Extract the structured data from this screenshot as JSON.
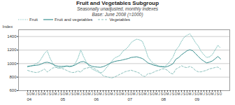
{
  "chart_data": {
    "type": "line",
    "title": "Fruit and Vegetables Subgroup",
    "subtitle": [
      "Seasonally unadjusted, monthly indexes",
      "Base: June 2008 (=1000)"
    ],
    "ylabel": "Index",
    "categories": [
      "S",
      "O",
      "M",
      "J",
      "S",
      "O",
      "M",
      "J",
      "S",
      "O",
      "M",
      "J",
      "S",
      "O",
      "M",
      "J",
      "S",
      "O",
      "M",
      "J",
      "S",
      "O",
      "M",
      "J",
      "S",
      "O",
      "M",
      "J",
      "S",
      "O",
      "M",
      "J",
      "S",
      "O",
      "M",
      "J",
      "S",
      "O",
      "M",
      "J",
      "S",
      "O",
      "M",
      "J",
      "S",
      "O",
      "M",
      "J",
      "S",
      "O",
      "M",
      "J",
      "S",
      "O",
      "M",
      "J",
      "S",
      "O",
      "M",
      "J",
      "S",
      "O",
      "M",
      "J",
      "S",
      "O",
      "M",
      "J",
      "S",
      "O"
    ],
    "series": [
      {
        "name": "Fruit",
        "color": "#7abfbb",
        "line_style": "dotted",
        "values": [
          950,
          960,
          975,
          1000,
          1020,
          1080,
          1150,
          1190,
          1080,
          1000,
          950,
          930,
          940,
          950,
          960,
          950,
          960,
          1000,
          1080,
          1200,
          1100,
          1020,
          960,
          920,
          900,
          880,
          860,
          880,
          930,
          980,
          1030,
          1080,
          1100,
          1120,
          1180,
          1210,
          1250,
          1310,
          1340,
          1360,
          1350,
          1330,
          1230,
          1100,
          1040,
          1000,
          980,
          960,
          960,
          960,
          990,
          1040,
          1100,
          1200,
          1250,
          1330,
          1390,
          1420,
          1440,
          1380,
          1310,
          1260,
          1180,
          1130,
          1090,
          1100,
          1130,
          1200,
          1270,
          1230
        ]
      },
      {
        "name": "Fruit and vegetables",
        "color": "#3a9090",
        "line_style": "solid",
        "values": [
          960,
          965,
          970,
          975,
          980,
          995,
          1015,
          1020,
          1010,
          990,
          970,
          960,
          958,
          960,
          965,
          960,
          965,
          980,
          1005,
          1025,
          1030,
          1010,
          980,
          960,
          952,
          948,
          945,
          955,
          972,
          995,
          1015,
          1030,
          1040,
          1045,
          1055,
          1065,
          1075,
          1090,
          1095,
          1100,
          1088,
          1075,
          1045,
          1010,
          995,
          978,
          968,
          958,
          952,
          948,
          958,
          975,
          1000,
          1065,
          1090,
          1130,
          1160,
          1190,
          1205,
          1190,
          1148,
          1105,
          1065,
          1035,
          1010,
          1022,
          1038,
          1070,
          1105,
          1068
        ]
      },
      {
        "name": "Vegetables",
        "color": "#8abfbb",
        "line_style": "dashed",
        "values": [
          900,
          885,
          875,
          868,
          875,
          895,
          920,
          875,
          905,
          935,
          942,
          942,
          932,
          918,
          898,
          878,
          868,
          872,
          892,
          872,
          920,
          932,
          942,
          942,
          922,
          900,
          868,
          818,
          808,
          798,
          788,
          800,
          820,
          842,
          862,
          882,
          892,
          902,
          888,
          875,
          858,
          820,
          808,
          852,
          852,
          872,
          892,
          902,
          922,
          922,
          900,
          858,
          848,
          918,
          940,
          968,
          948,
          940,
          958,
          938,
          898,
          878,
          878,
          890,
          902,
          922,
          930,
          942,
          948,
          918
        ]
      }
    ],
    "ylim": [
      600,
      1500
    ],
    "yticks": [
      600,
      800,
      1000,
      1200,
      1400
    ],
    "grid": true,
    "legend": "upper left",
    "annotations": [
      {
        "text": "04",
        "x": 0
      },
      {
        "text": "05",
        "x": 12
      },
      {
        "text": "06",
        "x": 24
      },
      {
        "text": "07",
        "x": 36
      },
      {
        "text": "08",
        "x": 48
      },
      {
        "text": "09",
        "x": 60
      }
    ]
  }
}
